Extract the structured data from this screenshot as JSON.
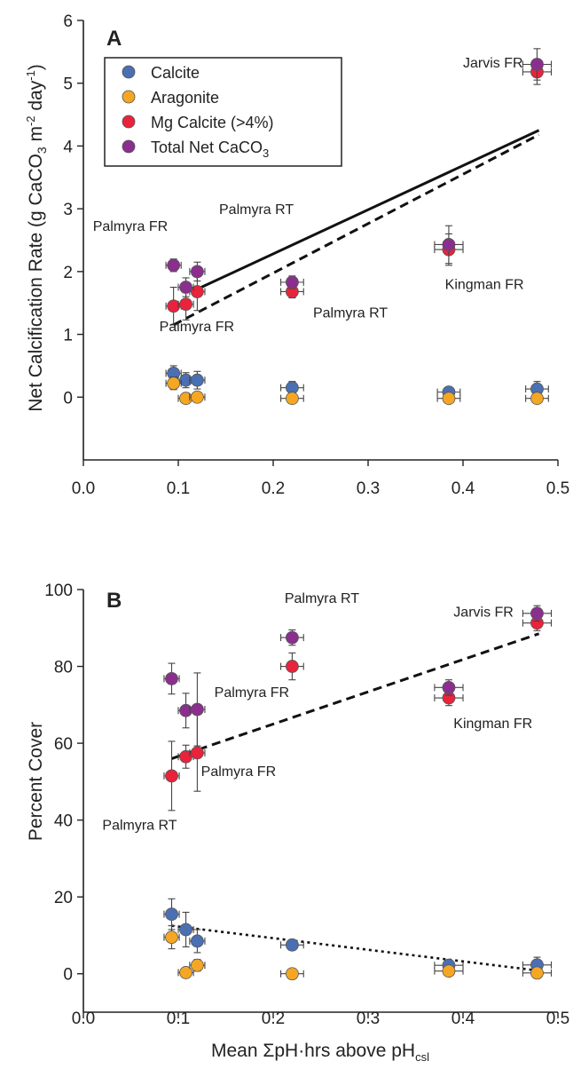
{
  "colors": {
    "calcite": "#4a6fb3",
    "aragonite": "#f5a623",
    "mg_calcite": "#e8233b",
    "total": "#8b2f8f",
    "axis": "#222222"
  },
  "chart_data": [
    {
      "type": "scatter",
      "panel": "A",
      "xlabel": "",
      "ylabel": "Net Calcification Rate (g CaCO3 m-2 day-1)",
      "ylabel_parts": {
        "main": "Net Calcification Rate (g CaCO",
        "sub": "3",
        "mid": " m",
        "sup1": "-2",
        "tail": " day",
        "sup2": "-1",
        "close": ")"
      },
      "xlim": [
        0.0,
        0.5
      ],
      "ylim": [
        -1,
        6
      ],
      "xticks": [
        "0.0",
        "0.1",
        "0.2",
        "0.3",
        "0.4",
        "0.5"
      ],
      "yticks": [
        "0",
        "1",
        "2",
        "3",
        "4",
        "5",
        "6"
      ],
      "legend": {
        "placement": "top-left",
        "entries": [
          {
            "key": "calcite",
            "label": "Calcite"
          },
          {
            "key": "aragonite",
            "label": "Aragonite"
          },
          {
            "key": "mg_calcite",
            "label": "Mg Calcite (>4%)"
          },
          {
            "key": "total",
            "label": "Total Net CaCO3",
            "main": "Total Net CaCO",
            "sub": "3"
          }
        ]
      },
      "series": [
        {
          "key": "calcite",
          "points": [
            {
              "x": 0.095,
              "y": 0.38,
              "xerr": 0.008,
              "yerr": 0.12
            },
            {
              "x": 0.108,
              "y": 0.27,
              "xerr": 0.008,
              "yerr": 0.12
            },
            {
              "x": 0.12,
              "y": 0.27,
              "xerr": 0.008,
              "yerr": 0.14
            },
            {
              "x": 0.22,
              "y": 0.15,
              "xerr": 0.012,
              "yerr": 0.1
            },
            {
              "x": 0.385,
              "y": 0.08,
              "xerr": 0.012,
              "yerr": 0.06
            },
            {
              "x": 0.478,
              "y": 0.13,
              "xerr": 0.012,
              "yerr": 0.12
            }
          ]
        },
        {
          "key": "aragonite",
          "points": [
            {
              "x": 0.095,
              "y": 0.22,
              "xerr": 0.008,
              "yerr": 0.1
            },
            {
              "x": 0.108,
              "y": -0.02,
              "xerr": 0.008,
              "yerr": 0.05
            },
            {
              "x": 0.12,
              "y": 0.0,
              "xerr": 0.008,
              "yerr": 0.05
            },
            {
              "x": 0.22,
              "y": -0.02,
              "xerr": 0.012,
              "yerr": 0.03
            },
            {
              "x": 0.385,
              "y": -0.02,
              "xerr": 0.012,
              "yerr": 0.03
            },
            {
              "x": 0.478,
              "y": -0.02,
              "xerr": 0.012,
              "yerr": 0.03
            }
          ]
        },
        {
          "key": "mg_calcite",
          "points": [
            {
              "x": 0.095,
              "y": 1.45,
              "xerr": 0.008,
              "yerr": 0.3
            },
            {
              "x": 0.108,
              "y": 1.48,
              "xerr": 0.008,
              "yerr": 0.25
            },
            {
              "x": 0.12,
              "y": 1.68,
              "xerr": 0.008,
              "yerr": 0.3
            },
            {
              "x": 0.22,
              "y": 1.68,
              "xerr": 0.012,
              "yerr": 0.1
            },
            {
              "x": 0.385,
              "y": 2.35,
              "xerr": 0.015,
              "yerr": 0.25
            },
            {
              "x": 0.478,
              "y": 5.18,
              "xerr": 0.015,
              "yerr": 0.2
            }
          ]
        },
        {
          "key": "total",
          "points": [
            {
              "x": 0.095,
              "y": 2.1,
              "xerr": 0.008,
              "yerr": 0.1
            },
            {
              "x": 0.108,
              "y": 1.75,
              "xerr": 0.008,
              "yerr": 0.15
            },
            {
              "x": 0.12,
              "y": 2.0,
              "xerr": 0.008,
              "yerr": 0.15
            },
            {
              "x": 0.22,
              "y": 1.83,
              "xerr": 0.012,
              "yerr": 0.1
            },
            {
              "x": 0.385,
              "y": 2.43,
              "xerr": 0.015,
              "yerr": 0.3
            },
            {
              "x": 0.478,
              "y": 5.3,
              "xerr": 0.015,
              "yerr": 0.25
            }
          ]
        }
      ],
      "fit_lines": [
        {
          "style": "solid",
          "x": [
            0.12,
            0.48
          ],
          "y": [
            1.72,
            4.25
          ]
        },
        {
          "style": "dashed",
          "x": [
            0.095,
            0.48
          ],
          "y": [
            1.15,
            4.18
          ]
        }
      ],
      "annotations": [
        {
          "text": "Jarvis FR",
          "x": 0.4,
          "y": 5.25
        },
        {
          "text": "Palmyra FR",
          "x": 0.01,
          "y": 2.65
        },
        {
          "text": "Palmyra RT",
          "x": 0.143,
          "y": 2.92
        },
        {
          "text": "Kingman FR",
          "x": 0.381,
          "y": 1.72
        },
        {
          "text": "Palmyra RT",
          "x": 0.242,
          "y": 1.27
        },
        {
          "text": "Palmyra FR",
          "x": 0.08,
          "y": 1.05
        }
      ]
    },
    {
      "type": "scatter",
      "panel": "B",
      "xlabel": "Mean ΣpH·hrs above pHcsl",
      "xlabel_parts": {
        "main": "Mean ΣpH·hrs above pH",
        "sub": "csl"
      },
      "ylabel": "Percent Cover",
      "xlim": [
        0.0,
        0.5
      ],
      "ylim": [
        -10,
        100
      ],
      "xticks": [
        "0.0",
        "0.1",
        "0.2",
        "0.3",
        "0.4",
        "0.5"
      ],
      "yticks": [
        "0",
        "20",
        "40",
        "60",
        "80",
        "100"
      ],
      "series": [
        {
          "key": "calcite",
          "points": [
            {
              "x": 0.093,
              "y": 15.5,
              "xerr": 0.008,
              "yerr": 4.0
            },
            {
              "x": 0.108,
              "y": 11.5,
              "xerr": 0.008,
              "yerr": 4.5
            },
            {
              "x": 0.12,
              "y": 8.5,
              "xerr": 0.008,
              "yerr": 3.0
            },
            {
              "x": 0.22,
              "y": 7.5,
              "xerr": 0.012,
              "yerr": 1.0
            },
            {
              "x": 0.385,
              "y": 2.2,
              "xerr": 0.015,
              "yerr": 1.0
            },
            {
              "x": 0.478,
              "y": 2.3,
              "xerr": 0.015,
              "yerr": 2.0
            }
          ]
        },
        {
          "key": "aragonite",
          "points": [
            {
              "x": 0.093,
              "y": 9.5,
              "xerr": 0.008,
              "yerr": 3.0
            },
            {
              "x": 0.108,
              "y": 0.3,
              "xerr": 0.008,
              "yerr": 1.0
            },
            {
              "x": 0.12,
              "y": 2.2,
              "xerr": 0.008,
              "yerr": 1.5
            },
            {
              "x": 0.22,
              "y": 0.0,
              "xerr": 0.012,
              "yerr": 0.5
            },
            {
              "x": 0.385,
              "y": 0.7,
              "xerr": 0.015,
              "yerr": 0.5
            },
            {
              "x": 0.478,
              "y": 0.2,
              "xerr": 0.015,
              "yerr": 0.5
            }
          ]
        },
        {
          "key": "mg_calcite",
          "points": [
            {
              "x": 0.093,
              "y": 51.5,
              "xerr": 0.008,
              "yerr": 9.0
            },
            {
              "x": 0.108,
              "y": 56.5,
              "xerr": 0.008,
              "yerr": 3.0
            },
            {
              "x": 0.12,
              "y": 57.5,
              "xerr": 0.008,
              "yerr": 10.0
            },
            {
              "x": 0.22,
              "y": 80.0,
              "xerr": 0.012,
              "yerr": 3.5
            },
            {
              "x": 0.385,
              "y": 71.8,
              "xerr": 0.015,
              "yerr": 2.0
            },
            {
              "x": 0.478,
              "y": 91.3,
              "xerr": 0.015,
              "yerr": 2.0
            }
          ]
        },
        {
          "key": "total",
          "points": [
            {
              "x": 0.093,
              "y": 76.8,
              "xerr": 0.008,
              "yerr": 4.0
            },
            {
              "x": 0.108,
              "y": 68.5,
              "xerr": 0.008,
              "yerr": 4.5
            },
            {
              "x": 0.12,
              "y": 68.8,
              "xerr": 0.008,
              "yerr": 9.5
            },
            {
              "x": 0.22,
              "y": 87.5,
              "xerr": 0.012,
              "yerr": 2.0
            },
            {
              "x": 0.385,
              "y": 74.5,
              "xerr": 0.015,
              "yerr": 2.0
            },
            {
              "x": 0.478,
              "y": 93.8,
              "xerr": 0.015,
              "yerr": 2.0
            }
          ]
        }
      ],
      "fit_lines": [
        {
          "style": "dashed",
          "x": [
            0.093,
            0.48
          ],
          "y": [
            56.0,
            88.5
          ]
        },
        {
          "style": "dotted",
          "x": [
            0.093,
            0.48
          ],
          "y": [
            12.5,
            0.8
          ]
        }
      ],
      "annotations": [
        {
          "text": "Palmyra RT",
          "x": 0.212,
          "y": 96.5
        },
        {
          "text": "Jarvis FR",
          "x": 0.39,
          "y": 93.0
        },
        {
          "text": "Palmyra FR",
          "x": 0.138,
          "y": 72.0
        },
        {
          "text": "Kingman FR",
          "x": 0.39,
          "y": 64.0
        },
        {
          "text": "Palmyra FR",
          "x": 0.124,
          "y": 51.5
        },
        {
          "text": "Palmyra RT",
          "x": 0.02,
          "y": 37.5
        }
      ]
    }
  ]
}
